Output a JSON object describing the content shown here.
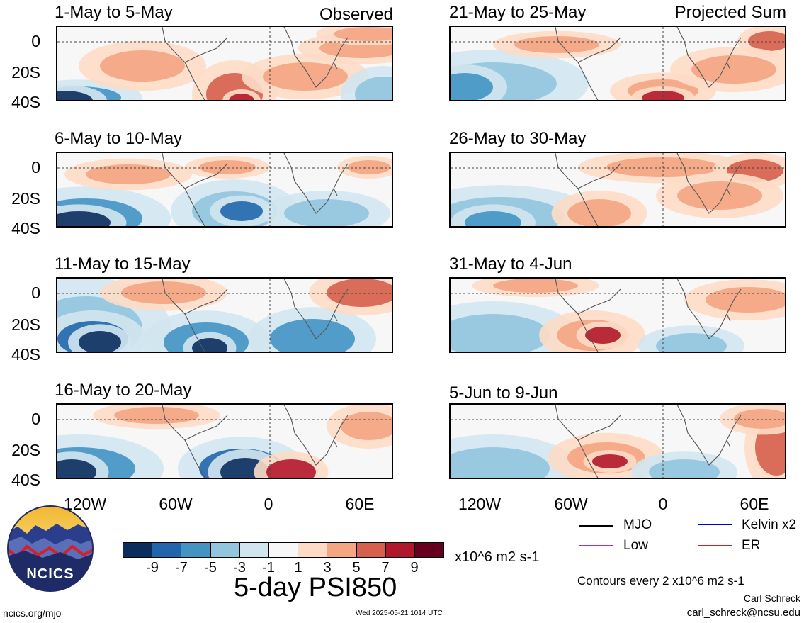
{
  "panels_left": [
    {
      "title": "1-May to 5-May",
      "tag": "Observed"
    },
    {
      "title": "6-May to 10-May",
      "tag": ""
    },
    {
      "title": "11-May to 15-May",
      "tag": ""
    },
    {
      "title": "16-May to 20-May",
      "tag": ""
    }
  ],
  "panels_right": [
    {
      "title": "21-May to 25-May",
      "tag": "Projected Sum"
    },
    {
      "title": "26-May to 30-May",
      "tag": ""
    },
    {
      "title": "31-May to 4-Jun",
      "tag": ""
    },
    {
      "title": "5-Jun to 9-Jun",
      "tag": ""
    }
  ],
  "lat_labels": [
    "0",
    "20S",
    "40S"
  ],
  "lon_labels": [
    "120W",
    "60W",
    "0",
    "60E"
  ],
  "legend": {
    "mjo": "MJO",
    "kelvin": "Kelvin x2",
    "low": "Low",
    "er": "ER",
    "contours": "Contours every 2 x10^6 m2 s-1"
  },
  "colorbar": {
    "ticks": [
      "-9",
      "-7",
      "-5",
      "-3",
      "-1",
      "1",
      "3",
      "5",
      "7",
      "9"
    ],
    "units": "x10^6 m2 s-1",
    "colors": [
      "#0b2d5e",
      "#2166ac",
      "#4393c3",
      "#92c5de",
      "#d1e5f0",
      "#f7f7f7",
      "#fddbc7",
      "#f4a582",
      "#d6604d",
      "#b2182b",
      "#67001f"
    ]
  },
  "main_title": "5-day PSI850",
  "logo_text": "NCICS",
  "footer": {
    "url": "ncics.org/mjo",
    "timestamp": "Wed 2025-05-21 1014 UTC",
    "author": "Carl Schreck",
    "email": "carl_schreck@ncsu.edu"
  },
  "colors": {
    "mjo_line": "#000000",
    "kelvin_line": "#0000cc",
    "low_line": "#9933cc",
    "er_line": "#cc2222"
  }
}
